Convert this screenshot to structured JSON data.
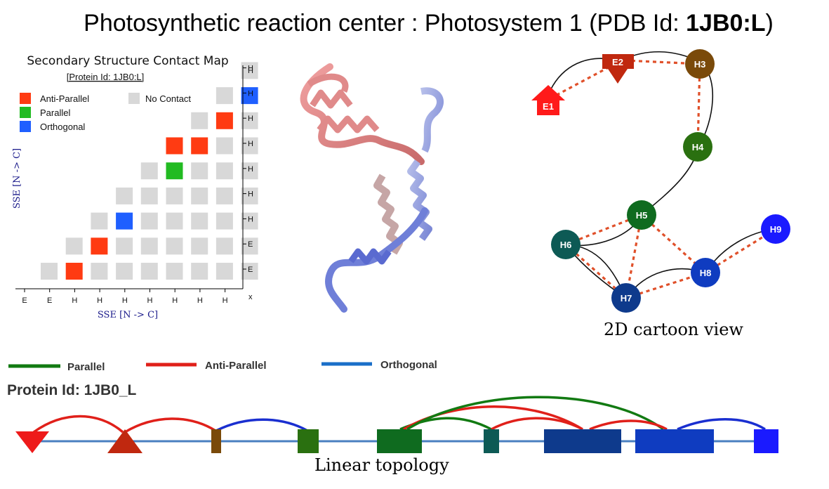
{
  "title": {
    "main": "Photosynthetic reaction center : Photosystem 1 (PDB Id: ",
    "bold": "1JB0:L",
    "close": ")"
  },
  "contact_map": {
    "title": "Secondary Structure Contact Map",
    "subtitle": "[Protein Id: 1JB0:L]",
    "xlabel": "SSE [N -> C]",
    "ylabel": "SSE [N -> C]",
    "corner_label": "x",
    "x_ticks": [
      "E",
      "E",
      "H",
      "H",
      "H",
      "H",
      "H",
      "H",
      "H"
    ],
    "y_ticks": [
      "E",
      "E",
      "H",
      "H",
      "H",
      "H",
      "H",
      "H",
      "H"
    ],
    "legend": [
      {
        "label": "Anti-Parallel",
        "color": "#ff3b12"
      },
      {
        "label": "Parallel",
        "color": "#22bb22"
      },
      {
        "label": "Orthogonal",
        "color": "#1f5fff"
      },
      {
        "label": "No Contact",
        "color": "#d8d8d8"
      }
    ],
    "cells": [
      {
        "col": 1,
        "row": 2,
        "type": "anti"
      },
      {
        "col": 2,
        "row": 3,
        "type": "anti"
      },
      {
        "col": 3,
        "row": 4,
        "type": "ortho"
      },
      {
        "col": 5,
        "row": 6,
        "type": "para"
      },
      {
        "col": 6,
        "row": 6,
        "type": "anti"
      },
      {
        "col": 6,
        "row": 7,
        "type": "anti"
      },
      {
        "col": 7,
        "row": 6,
        "type": "para"
      },
      {
        "col": 7,
        "row": 8,
        "type": "anti"
      },
      {
        "col": 8,
        "row": 9,
        "type": "ortho"
      }
    ]
  },
  "cartoon": {
    "caption": "2D cartoon view",
    "nodes": [
      {
        "id": "E1",
        "shape": "arrow-up",
        "color": "#ff1a1a"
      },
      {
        "id": "E2",
        "shape": "arrow-down",
        "color": "#c0280f"
      },
      {
        "id": "H3",
        "shape": "circle",
        "color": "#7a4a0a"
      },
      {
        "id": "H4",
        "shape": "circle",
        "color": "#2a7010"
      },
      {
        "id": "H5",
        "shape": "circle",
        "color": "#0f6b1f"
      },
      {
        "id": "H6",
        "shape": "circle",
        "color": "#0d5a55"
      },
      {
        "id": "H7",
        "shape": "circle",
        "color": "#0e3a8c"
      },
      {
        "id": "H8",
        "shape": "circle",
        "color": "#0f3cc0"
      },
      {
        "id": "H9",
        "shape": "circle",
        "color": "#1a1aff"
      }
    ],
    "backbone": [
      [
        "E1",
        "E2"
      ],
      [
        "E2",
        "H3"
      ],
      [
        "H3",
        "H4"
      ],
      [
        "H4",
        "H5"
      ],
      [
        "H5",
        "H6"
      ],
      [
        "H6",
        "H7"
      ],
      [
        "H7",
        "H8"
      ],
      [
        "H8",
        "H9"
      ]
    ],
    "contacts": [
      [
        "E1",
        "E2"
      ],
      [
        "E2",
        "H3"
      ],
      [
        "H3",
        "H4"
      ],
      [
        "H5",
        "H6"
      ],
      [
        "H5",
        "H7"
      ],
      [
        "H5",
        "H8"
      ],
      [
        "H6",
        "H7"
      ],
      [
        "H7",
        "H8"
      ],
      [
        "H8",
        "H9"
      ]
    ]
  },
  "linear": {
    "legend": [
      {
        "label": "Parallel",
        "color": "#127a12"
      },
      {
        "label": "Anti-Parallel",
        "color": "#e0201a"
      },
      {
        "label": "Orthogonal",
        "color": "#1a6fc8"
      }
    ],
    "protein_id": "Protein Id: 1JB0_L",
    "caption": "Linear topology",
    "line_color": "#4a7fc0"
  }
}
